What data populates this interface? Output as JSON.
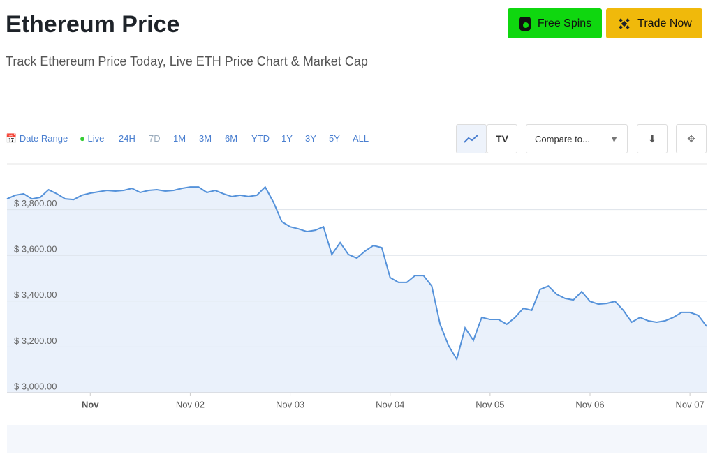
{
  "header": {
    "title": "Ethereum Price",
    "subtitle": "Track Ethereum Price Today, Live ETH Price Chart & Market Cap"
  },
  "buttons": [
    "Free Spins",
    "Trade Now"
  ],
  "toolbar": {
    "date_range": "Date Range",
    "live": "Live",
    "ranges": [
      "24H",
      "7D",
      "1M",
      "3M",
      "6M",
      "YTD",
      "1Y",
      "3Y",
      "5Y",
      "ALL"
    ],
    "compare": "Compare to..."
  },
  "chart_data": {
    "type": "line",
    "color": "#5592da",
    "grid": true,
    "values": [
      3847,
      3863,
      3869,
      3847,
      3854,
      3887,
      3869,
      3847,
      3844,
      3863,
      3872,
      3878,
      3884,
      3881,
      3884,
      3893,
      3875,
      3884,
      3887,
      3881,
      3884,
      3893,
      3899,
      3899,
      3875,
      3884,
      3869,
      3857,
      3863,
      3857,
      3863,
      3899,
      3832,
      3747,
      3725,
      3716,
      3704,
      3710,
      3725,
      3604,
      3656,
      3604,
      3588,
      3619,
      3643,
      3634,
      3503,
      3482,
      3482,
      3512,
      3512,
      3466,
      3299,
      3207,
      3146,
      3283,
      3229,
      3329,
      3320,
      3320,
      3299,
      3329,
      3369,
      3360,
      3451,
      3466,
      3430,
      3412,
      3405,
      3442,
      3399,
      3387,
      3390,
      3399,
      3360,
      3308,
      3329,
      3314,
      3308,
      3314,
      3329,
      3351,
      3351,
      3338,
      3290
    ],
    "xlim": [
      0,
      84
    ],
    "xticks": [
      {
        "value": 10,
        "label": "Nov"
      },
      {
        "value": 22,
        "label": "Nov 02"
      },
      {
        "value": 34,
        "label": "Nov 03"
      },
      {
        "value": 46,
        "label": "Nov 04"
      },
      {
        "value": 58,
        "label": "Nov 05"
      },
      {
        "value": 70,
        "label": "Nov 06"
      },
      {
        "value": 82,
        "label": "Nov 07"
      }
    ],
    "ylim": [
      3000,
      4000
    ],
    "yticks": [
      {
        "value": 3000,
        "label": "$ 3,000.00"
      },
      {
        "value": 3200,
        "label": "$ 3,200.00"
      },
      {
        "value": 3400,
        "label": "$ 3,400.00"
      },
      {
        "value": 3600,
        "label": "$ 3,600.00"
      },
      {
        "value": 3800,
        "label": "$ 3,800.00"
      }
    ]
  }
}
